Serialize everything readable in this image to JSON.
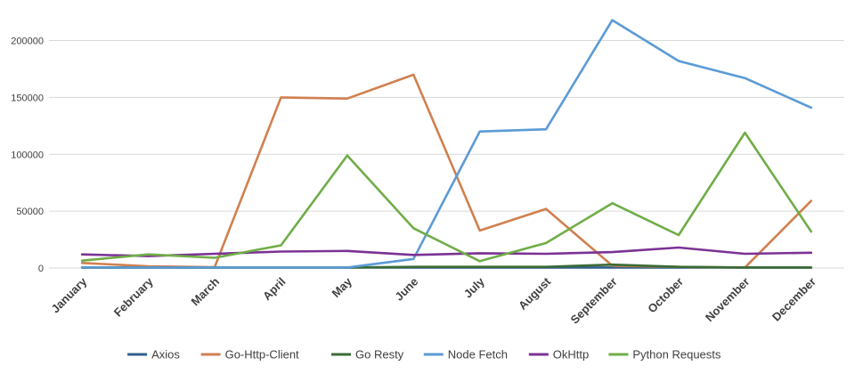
{
  "chart_data": {
    "type": "line",
    "title": "",
    "xlabel": "",
    "ylabel": "",
    "ylim": [
      0,
      220000
    ],
    "yticks": [
      0,
      50000,
      100000,
      150000,
      200000
    ],
    "ytick_labels": [
      "0",
      "50000",
      "100000",
      "150000",
      "200000"
    ],
    "grid": true,
    "legend_position": "bottom",
    "categories": [
      "January",
      "February",
      "March",
      "April",
      "May",
      "June",
      "July",
      "August",
      "September",
      "October",
      "November",
      "December"
    ],
    "series": [
      {
        "name": "Axios",
        "color": "#2f5f8a",
        "values": [
          500,
          500,
          500,
          500,
          500,
          500,
          500,
          500,
          500,
          500,
          500,
          500
        ]
      },
      {
        "name": "Go-Http-Client",
        "color": "#d0804f",
        "values": [
          4500,
          1500,
          800,
          150000,
          149000,
          170000,
          33000,
          52000,
          2000,
          1000,
          500,
          59000
        ]
      },
      {
        "name": "Go Resty",
        "color": "#3a6b35",
        "values": [
          500,
          500,
          500,
          500,
          500,
          1000,
          1000,
          1000,
          3000,
          1000,
          500,
          500
        ]
      },
      {
        "name": "Node Fetch",
        "color": "#5b9bd5",
        "values": [
          500,
          500,
          500,
          500,
          500,
          8000,
          120000,
          122000,
          218000,
          182000,
          167000,
          141000
        ]
      },
      {
        "name": "OkHttp",
        "color": "#7b3294",
        "values": [
          12000,
          10500,
          12500,
          14500,
          15000,
          11500,
          13000,
          12500,
          14000,
          18000,
          12500,
          13500
        ]
      },
      {
        "name": "Python Requests",
        "color": "#70ad47",
        "values": [
          6500,
          12000,
          9000,
          20000,
          99000,
          35000,
          6000,
          22000,
          57000,
          29000,
          119000,
          32000
        ]
      }
    ]
  }
}
